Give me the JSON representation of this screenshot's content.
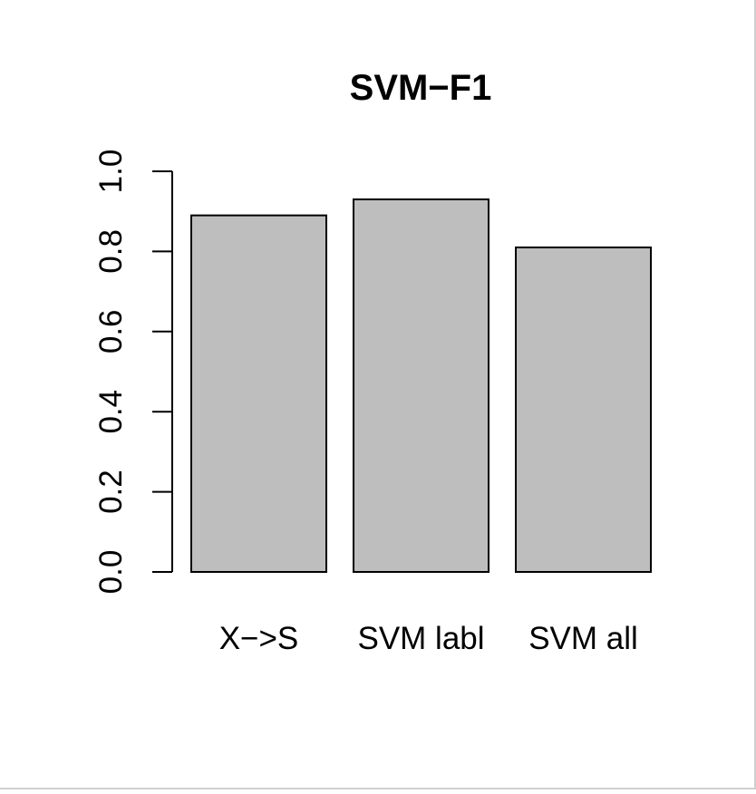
{
  "chart_data": {
    "type": "bar",
    "title": "SVM−F1",
    "xlabel": "",
    "ylabel": "",
    "categories": [
      "X−>S",
      "SVM labl",
      "SVM all"
    ],
    "values": [
      0.89,
      0.93,
      0.81
    ],
    "ylim": [
      0,
      1.0
    ],
    "yticks": [
      "0.0",
      "0.2",
      "0.4",
      "0.6",
      "0.8",
      "1.0"
    ],
    "grid": false,
    "legend": "none"
  },
  "colors": {
    "bar_fill": "#bebebe",
    "bar_stroke": "#000000",
    "axis": "#000000",
    "background": "#ffffff"
  }
}
